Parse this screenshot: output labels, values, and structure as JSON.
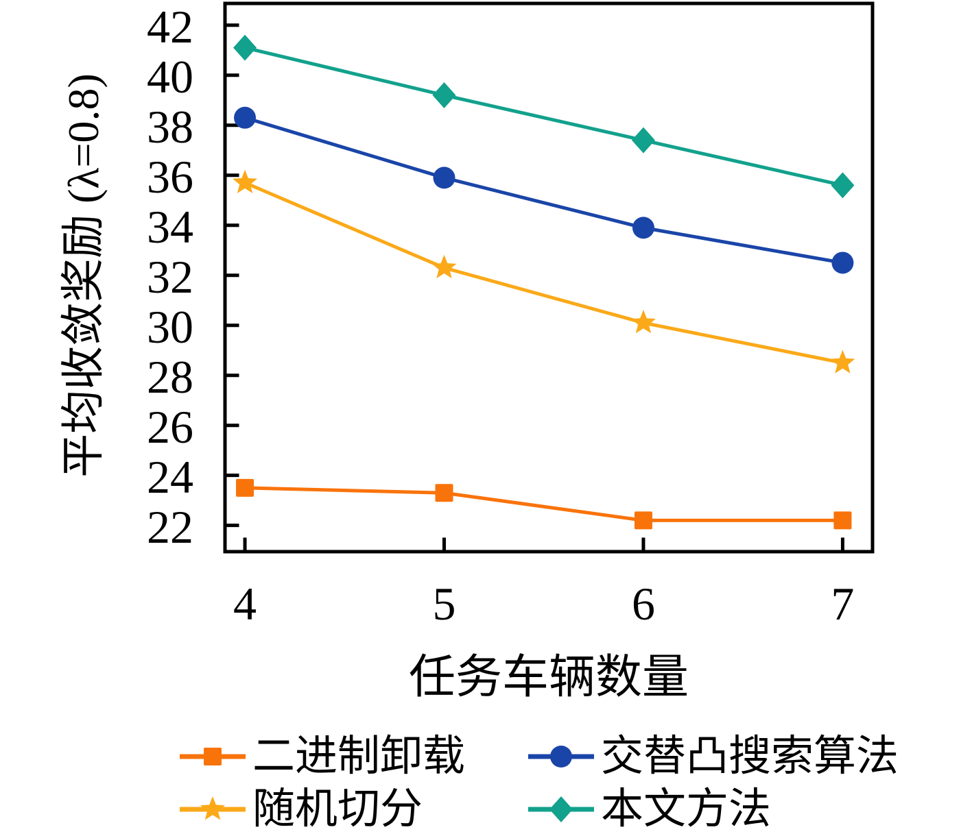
{
  "figure": {
    "background": "#ffffff",
    "axis_color": "#000000"
  },
  "chart_data": {
    "type": "line",
    "x": [
      4,
      5,
      6,
      7
    ],
    "xlabel": "任务车辆数量",
    "ylabel": "平均收敛奖励 (λ=0.8)",
    "xticks": [
      4,
      5,
      6,
      7
    ],
    "yticks": [
      22,
      24,
      26,
      28,
      30,
      32,
      34,
      36,
      38,
      40,
      42
    ],
    "xlim": [
      3.9,
      7.15
    ],
    "ylim": [
      20.95,
      42.87
    ],
    "grid": false,
    "legend_position": "below-chart",
    "legend_columns": 2,
    "series": [
      {
        "name": "二进制卸载",
        "marker": "square",
        "color": "#F9730B",
        "values": [
          23.5,
          23.3,
          22.2,
          22.2
        ]
      },
      {
        "name": "交替凸搜索算法",
        "marker": "circle",
        "color": "#1A45A8",
        "values": [
          38.3,
          35.9,
          33.9,
          32.5
        ]
      },
      {
        "name": "随机切分",
        "marker": "star",
        "color": "#FBA919",
        "values": [
          35.7,
          32.3,
          30.1,
          28.5
        ]
      },
      {
        "name": "本文方法",
        "marker": "diamond",
        "color": "#12A18C",
        "values": [
          41.1,
          39.2,
          37.4,
          35.6
        ]
      }
    ]
  }
}
